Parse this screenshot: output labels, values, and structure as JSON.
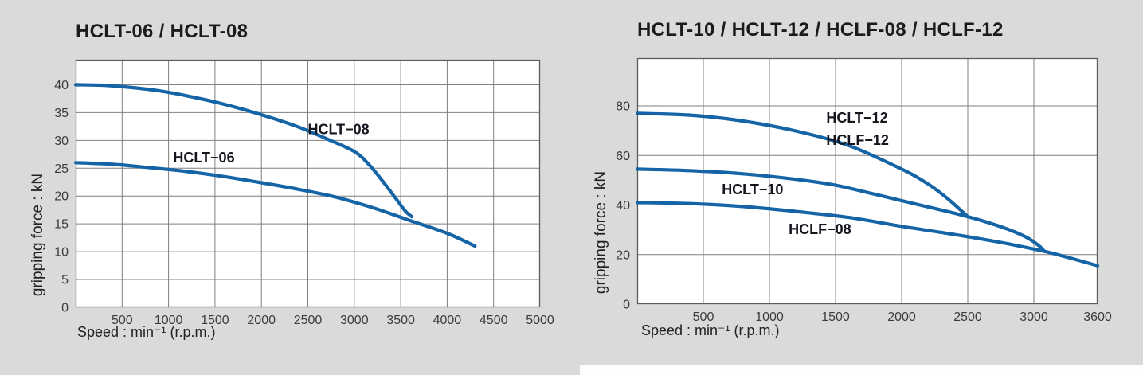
{
  "page": {
    "background_color": "#d9dada",
    "plot_background": "#ffffff",
    "grid_color": "#7f7f7f",
    "axis_color": "#5c5c5c",
    "curve_color": "#1464a6",
    "title_color": "#1b1b1b",
    "tick_color": "#3c3c3c"
  },
  "chart_data": [
    {
      "type": "line",
      "title": "HCLT-06 / HCLT-08",
      "xlabel": "Speed : min⁻¹ (r.p.m.)",
      "ylabel": "gripping force : kN",
      "xlim": [
        0,
        5000
      ],
      "ylim": [
        0,
        44.5
      ],
      "x_ticks": [
        500,
        1000,
        1500,
        2000,
        2500,
        3000,
        3500,
        4000,
        4500,
        5000
      ],
      "y_ticks": [
        0,
        5,
        10,
        15,
        20,
        25,
        30,
        35,
        40
      ],
      "grid": true,
      "legend": "labels-on-curves",
      "series": [
        {
          "name": "HCLT-08",
          "points": [
            [
              0,
              40
            ],
            [
              300,
              39.9
            ],
            [
              600,
              39.5
            ],
            [
              900,
              38.9
            ],
            [
              1200,
              38.0
            ],
            [
              1500,
              36.9
            ],
            [
              1800,
              35.6
            ],
            [
              2100,
              34.1
            ],
            [
              2400,
              32.4
            ],
            [
              2700,
              30.3
            ],
            [
              3000,
              28.0
            ],
            [
              3150,
              25.8
            ],
            [
              3300,
              22.8
            ],
            [
              3450,
              19.5
            ],
            [
              3550,
              17.3
            ],
            [
              3620,
              16.3
            ]
          ],
          "labels": [
            {
              "text": "HCLT−08",
              "at": [
                2500,
                32
              ]
            }
          ]
        },
        {
          "name": "HCLT-06",
          "points": [
            [
              0,
              26
            ],
            [
              400,
              25.7
            ],
            [
              800,
              25.1
            ],
            [
              1200,
              24.4
            ],
            [
              1600,
              23.5
            ],
            [
              2000,
              22.4
            ],
            [
              2400,
              21.2
            ],
            [
              2800,
              19.8
            ],
            [
              3200,
              17.9
            ],
            [
              3600,
              15.6
            ],
            [
              4000,
              13.3
            ],
            [
              4300,
              11.0
            ]
          ],
          "labels": [
            {
              "text": "HCLT−06",
              "at": [
                1050,
                26.9
              ]
            }
          ]
        }
      ]
    },
    {
      "type": "line",
      "title": "HCLT-10 / HCLT-12 / HCLF-08 / HCLF-12",
      "xlabel": "Speed : min⁻¹ (r.p.m.)",
      "ylabel": "gripping force : kN",
      "xlim": [
        0,
        3600
      ],
      "ylim": [
        0,
        99.3
      ],
      "x_ticks": [
        500,
        1000,
        1500,
        2000,
        2500,
        3000,
        3600
      ],
      "y_ticks": [
        0,
        20,
        40,
        60,
        80
      ],
      "grid": true,
      "legend": "labels-on-curves",
      "series": [
        {
          "name": "HCLT-12 / HCLF-12",
          "points": [
            [
              0,
              77
            ],
            [
              400,
              76.3
            ],
            [
              800,
              73.9
            ],
            [
              1200,
              69.9
            ],
            [
              1600,
              64.0
            ],
            [
              2000,
              54.5
            ],
            [
              2200,
              48.5
            ],
            [
              2350,
              42.5
            ],
            [
              2500,
              35.3
            ]
          ],
          "labels": [
            {
              "text": "HCLT−12",
              "at": [
                1430,
                75.2
              ]
            },
            {
              "text": "HCLF−12",
              "at": [
                1430,
                66.2
              ]
            }
          ]
        },
        {
          "name": "HCLT-10",
          "points": [
            [
              0,
              54.5
            ],
            [
              400,
              53.9
            ],
            [
              800,
              52.6
            ],
            [
              1200,
              50.4
            ],
            [
              1500,
              48.0
            ],
            [
              1800,
              44.3
            ],
            [
              2100,
              40.5
            ],
            [
              2400,
              36.7
            ],
            [
              2600,
              33.8
            ],
            [
              2800,
              30.3
            ],
            [
              2950,
              26.8
            ],
            [
              3050,
              23.5
            ],
            [
              3100,
              21.3
            ]
          ],
          "labels": [
            {
              "text": "HCLT−10",
              "at": [
                640,
                46.3
              ]
            }
          ]
        },
        {
          "name": "HCLF-08",
          "points": [
            [
              0,
              41
            ],
            [
              400,
              40.6
            ],
            [
              800,
              39.4
            ],
            [
              1200,
              37.4
            ],
            [
              1600,
              35.0
            ],
            [
              2000,
              31.4
            ],
            [
              2400,
              28.1
            ],
            [
              2800,
              24.4
            ],
            [
              3100,
              21.3
            ],
            [
              3350,
              18.5
            ],
            [
              3600,
              15.5
            ]
          ],
          "labels": [
            {
              "text": "HCLF−08",
              "at": [
                1145,
                30.2
              ]
            }
          ]
        }
      ]
    }
  ]
}
